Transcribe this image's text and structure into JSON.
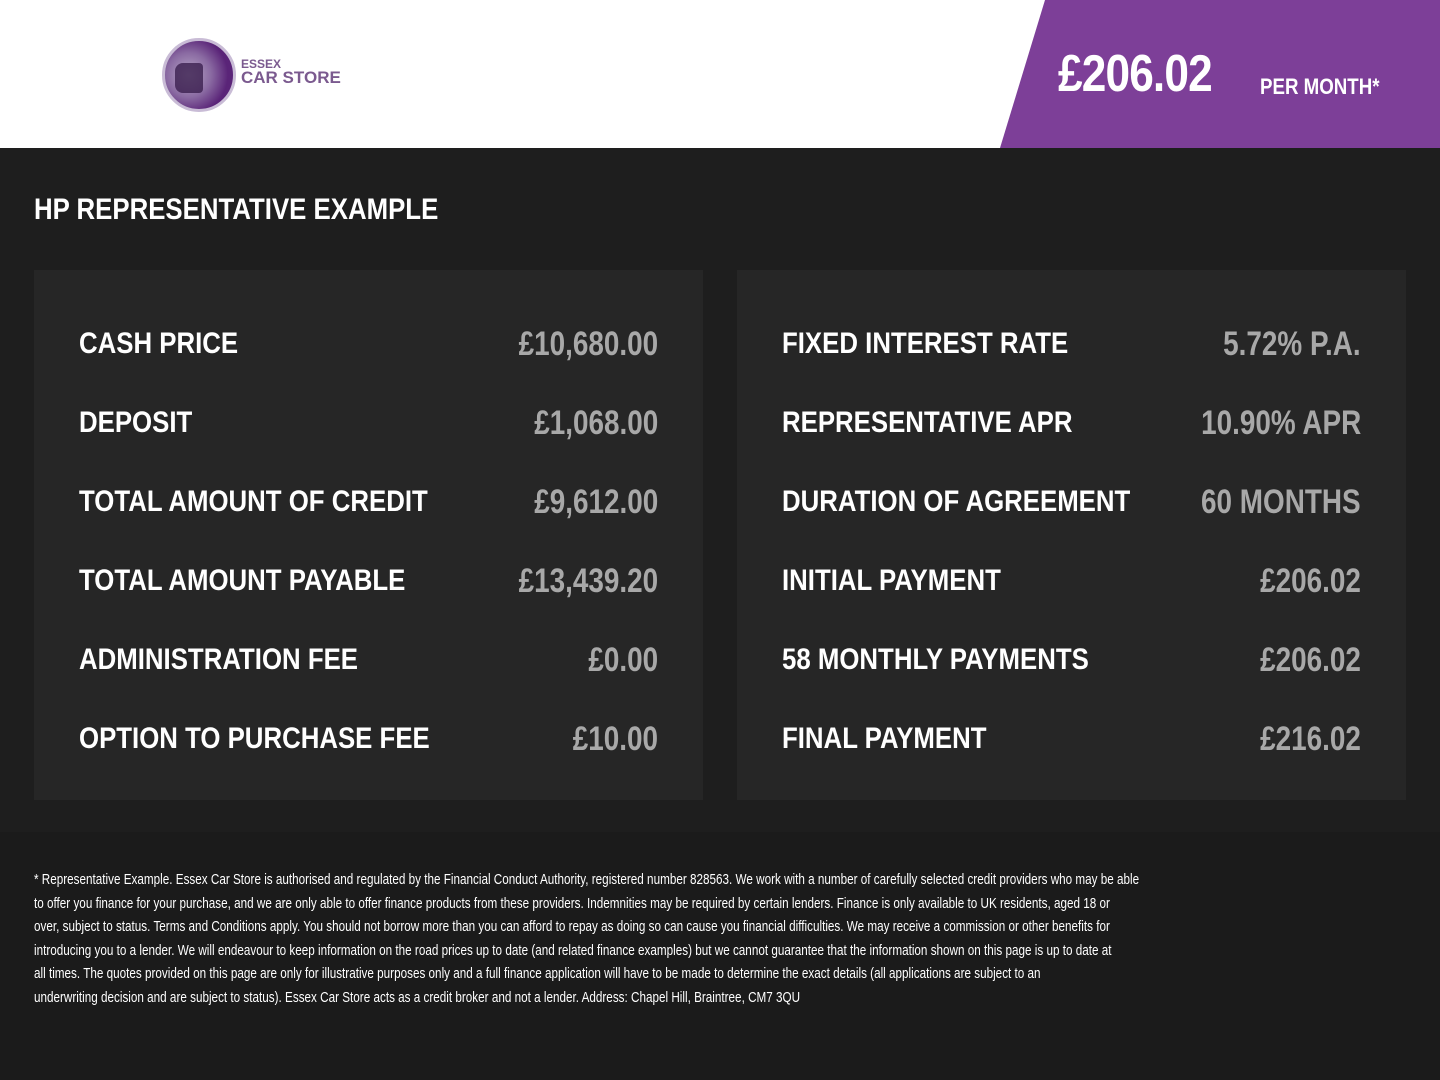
{
  "brand": {
    "line1": "ESSEX",
    "line2": "CAR STORE",
    "accent": "#7d3f98"
  },
  "banner": {
    "price": "£206.02",
    "suffix": "PER MONTH*"
  },
  "section_title": "HP REPRESENTATIVE EXAMPLE",
  "left": [
    {
      "label": "CASH PRICE",
      "value": "£10,680.00"
    },
    {
      "label": "DEPOSIT",
      "value": "£1,068.00"
    },
    {
      "label": "TOTAL AMOUNT OF CREDIT",
      "value": "£9,612.00"
    },
    {
      "label": "TOTAL AMOUNT PAYABLE",
      "value": "£13,439.20"
    },
    {
      "label": "ADMINISTRATION FEE",
      "value": "£0.00"
    },
    {
      "label": "OPTION TO PURCHASE FEE",
      "value": "£10.00"
    }
  ],
  "right": [
    {
      "label": "FIXED INTEREST RATE",
      "value": "5.72% P.A."
    },
    {
      "label": "REPRESENTATIVE APR",
      "value": "10.90% APR"
    },
    {
      "label": "DURATION OF AGREEMENT",
      "value": "60 MONTHS"
    },
    {
      "label": "INITIAL PAYMENT",
      "value": "£206.02"
    },
    {
      "label": "58 MONTHLY PAYMENTS",
      "value": "£206.02"
    },
    {
      "label": "FINAL PAYMENT",
      "value": "£216.02"
    }
  ],
  "disclaimer": [
    "* Representative Example. Essex Car Store is authorised and regulated by the Financial Conduct Authority, registered number 828563. We work with a number of carefully selected credit providers who may be able",
    "to offer you finance for your purchase, and we are only able to offer finance products from these providers. Indemnities may be required by certain lenders. Finance is only available to UK residents, aged 18 or",
    "over, subject to status. Terms and Conditions apply. You should not borrow more than you can afford to repay as doing so can cause you financial difficulties. We may receive a commission or other benefits for",
    "introducing you to a lender. We will endeavour to keep information on the road prices up to date (and related finance examples) but we cannot guarantee that the information shown on this page is up to date at",
    "all times. The quotes provided on this page are only for illustrative purposes only and a full finance application will have to be made to determine the exact details (all applications are subject to an",
    "underwriting decision and are subject to status). Essex Car Store acts as a credit broker and not a lender. Address: Chapel Hill, Braintree, CM7 3QU"
  ]
}
